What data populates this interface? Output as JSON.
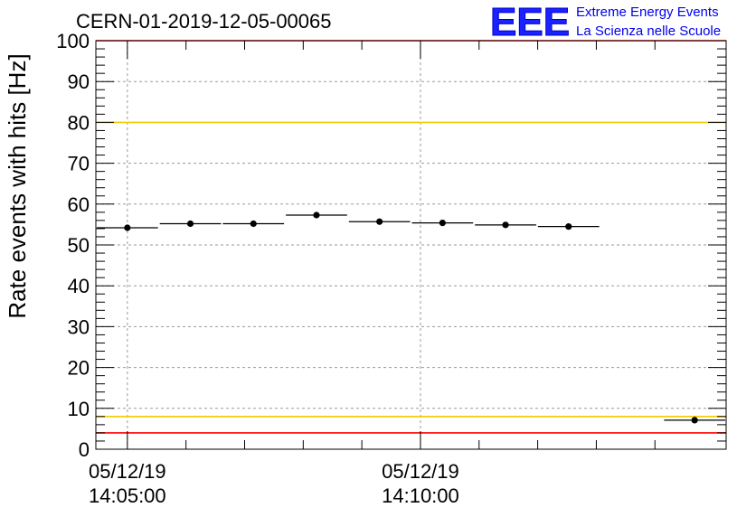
{
  "chart_data": {
    "type": "scatter",
    "title": "CERN-01-2019-12-05-00065",
    "ylabel": "Rate events with hits [Hz]",
    "xlabel": "",
    "ylim": [
      0,
      100
    ],
    "y_ticks": [
      "0",
      "10",
      "20",
      "30",
      "40",
      "50",
      "60",
      "70",
      "80",
      "90",
      "100"
    ],
    "x_ticks": [
      {
        "date": "05/12/19",
        "time": "14:05:00"
      },
      {
        "date": "05/12/19",
        "time": "14:10:00"
      }
    ],
    "grid": true,
    "series": [
      {
        "name": "rate",
        "bins": [
          {
            "y": 54.2
          },
          {
            "y": 55.2
          },
          {
            "y": 55.2
          },
          {
            "y": 57.3
          },
          {
            "y": 55.7
          },
          {
            "y": 55.4
          },
          {
            "y": 54.9
          },
          {
            "y": 54.5
          },
          {
            "y": null
          },
          {
            "y": 7.1
          }
        ]
      }
    ],
    "reference_lines": [
      {
        "name": "upper-red-limit",
        "y": 100,
        "color": "#ff0000"
      },
      {
        "name": "upper-yellow-limit",
        "y": 80,
        "color": "#f2cc00"
      },
      {
        "name": "lower-yellow-limit",
        "y": 8,
        "color": "#f2cc00"
      },
      {
        "name": "lower-red-limit",
        "y": 4,
        "color": "#ff0000"
      }
    ]
  },
  "logo": {
    "letters": "EEE",
    "line1": "Extreme Energy Events",
    "line2": "La Scienza nelle Scuole",
    "color": "#1a22ff"
  }
}
